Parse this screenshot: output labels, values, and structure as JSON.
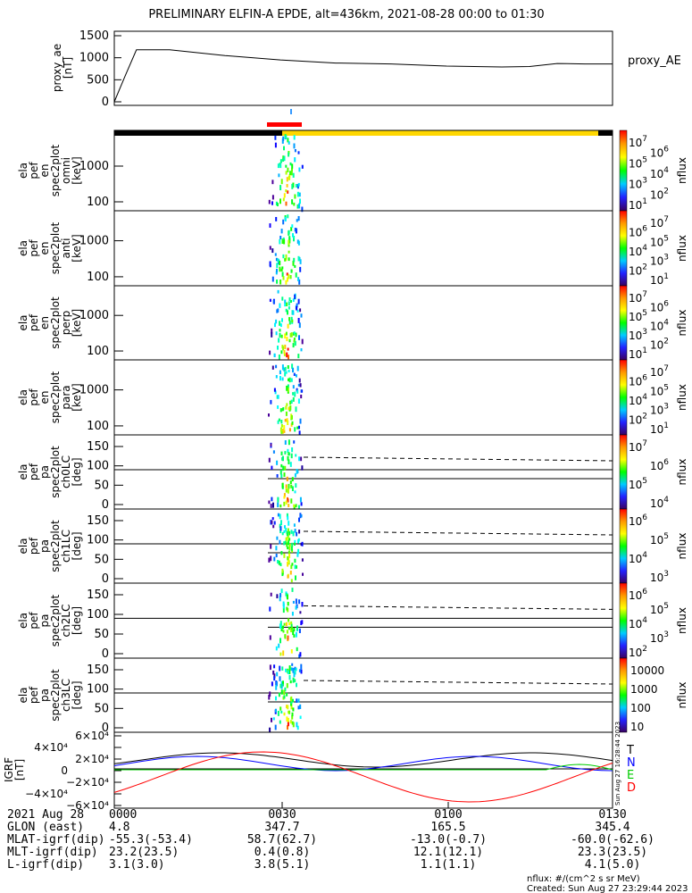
{
  "title": "PRELIMINARY ELFIN-A EPDE, alt=436km, 2021-08-28 00:00 to 01:30",
  "chart_data": [
    {
      "type": "line",
      "name": "proxy_ae",
      "ylabel": [
        "proxy_ae",
        "[nT]"
      ],
      "legend": "proxy_AE",
      "ylim": [
        0,
        1500
      ],
      "yticks": [
        "0",
        "500",
        "1000",
        "1500"
      ],
      "x_minutes": [
        0,
        2,
        4,
        10,
        20,
        30,
        40,
        50,
        60,
        70,
        75,
        80,
        85,
        90
      ],
      "values": [
        0,
        600,
        1180,
        1180,
        1050,
        950,
        880,
        860,
        810,
        790,
        800,
        870,
        860,
        860
      ]
    },
    {
      "type": "heatmap",
      "name": "omni",
      "ylabel": [
        "ela",
        "pef",
        "en",
        "spec2plot",
        "omni",
        "[keV]"
      ],
      "yticks": [
        "1000",
        "100"
      ],
      "colorbar": {
        "ticks": [
          "10",
          "6",
          "5",
          "4",
          "3",
          "2",
          "1"
        ],
        "label": "nflux"
      }
    },
    {
      "type": "heatmap",
      "name": "anti",
      "ylabel": [
        "ela",
        "pef",
        "en",
        "spec2plot",
        "anti",
        "[keV]"
      ],
      "yticks": [
        "1000",
        "100"
      ],
      "colorbar": {
        "ticks": [
          "10",
          "6",
          "5",
          "4",
          "3",
          "2",
          "1"
        ],
        "label": "nflux"
      }
    },
    {
      "type": "heatmap",
      "name": "perp",
      "ylabel": [
        "ela",
        "pef",
        "en",
        "spec2plot",
        "perp",
        "[keV]"
      ],
      "yticks": [
        "1000",
        "100"
      ],
      "colorbar": {
        "ticks": [
          "10",
          "6",
          "5",
          "4",
          "3",
          "2",
          "1"
        ],
        "label": "nflux"
      }
    },
    {
      "type": "heatmap",
      "name": "para",
      "ylabel": [
        "ela",
        "pef",
        "en",
        "spec2plot",
        "para",
        "[keV]"
      ],
      "yticks": [
        "1000",
        "100"
      ],
      "colorbar": {
        "ticks": [
          "10",
          "6",
          "5",
          "4",
          "3",
          "2",
          "1"
        ],
        "label": "nflux"
      }
    },
    {
      "type": "heatmap",
      "name": "ch0LC",
      "ylabel": [
        "ela",
        "pef",
        "pa",
        "spec2plot",
        "ch0LC",
        "[deg]"
      ],
      "yticks": [
        "150",
        "100",
        "50",
        "0"
      ],
      "colorbar": {
        "ticks": [
          "10",
          "6",
          "5",
          "4"
        ],
        "exp": [
          "7",
          "6",
          "5",
          "4"
        ],
        "label": "nflux"
      }
    },
    {
      "type": "heatmap",
      "name": "ch1LC",
      "ylabel": [
        "ela",
        "pef",
        "pa",
        "spec2plot",
        "ch1LC",
        "[deg]"
      ],
      "yticks": [
        "150",
        "100",
        "50",
        "0"
      ],
      "colorbar": {
        "exp": [
          "6",
          "5",
          "4",
          "3"
        ],
        "label": "nflux"
      }
    },
    {
      "type": "heatmap",
      "name": "ch2LC",
      "ylabel": [
        "ela",
        "pef",
        "pa",
        "spec2plot",
        "ch2LC",
        "[deg]"
      ],
      "yticks": [
        "150",
        "100",
        "50",
        "0"
      ],
      "colorbar": {
        "exp": [
          "6",
          "5",
          "4",
          "3",
          "2"
        ],
        "label": "nflux"
      }
    },
    {
      "type": "heatmap",
      "name": "ch3LC",
      "ylabel": [
        "ela",
        "pef",
        "pa",
        "spec2plot",
        "ch3LC",
        "[deg]"
      ],
      "yticks": [
        "150",
        "100",
        "50",
        "0"
      ],
      "colorbar": {
        "plain": [
          "10000",
          "1000",
          "100",
          "10"
        ],
        "label": "nflux"
      }
    },
    {
      "type": "line",
      "name": "igrf",
      "ylabel": [
        "IGRF",
        "[nT]"
      ],
      "yticks": [
        "6×10⁴",
        "4×10⁴",
        "2×10⁴",
        "0",
        "−2×10⁴",
        "−4×10⁴",
        "−6×10⁴"
      ],
      "legend": [
        {
          "label": "T",
          "color": "#000000"
        },
        {
          "label": "N",
          "color": "#0000ff"
        },
        {
          "label": "E",
          "color": "#00cc00"
        },
        {
          "label": "D",
          "color": "#ff0000"
        }
      ]
    }
  ],
  "energy_exp": [
    "7",
    "6",
    "5",
    "4",
    "3",
    "2",
    "1"
  ],
  "footer": {
    "rows": [
      {
        "label": "2021 Aug 28",
        "vals": [
          "0000",
          "0030",
          "0100",
          "0130"
        ]
      },
      {
        "label": "GLON (east)",
        "vals": [
          "4.8",
          "347.7",
          "165.5",
          "345.4"
        ]
      },
      {
        "label": "MLAT-igrf(dip)",
        "vals": [
          "-55.3(-53.4)",
          "58.7(62.7)",
          "-13.0(-0.7)",
          "-60.0(-62.6)"
        ]
      },
      {
        "label": "MLT-igrf(dip)",
        "vals": [
          "23.2(23.5)",
          "0.4(0.8)",
          "12.1(12.1)",
          "23.3(23.5)"
        ]
      },
      {
        "label": "L-igrf(dip)",
        "vals": [
          "3.1(3.0)",
          "3.8(5.1)",
          "1.1(1.1)",
          "4.1(5.0)"
        ]
      }
    ],
    "units": "nflux: #/(cm^2 s sr MeV)",
    "created": "Created: Sun Aug 27 23:29:44 2023",
    "stamp": "Sun Aug 27 16:28:44 2023"
  }
}
